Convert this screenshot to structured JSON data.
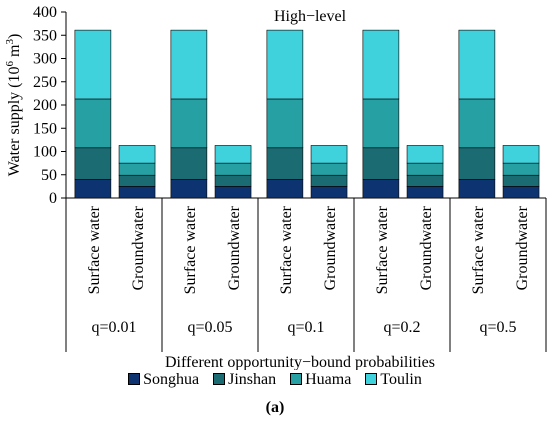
{
  "chart_data": {
    "type": "bar",
    "stacked": true,
    "title": "High−level",
    "ylabel": "Water supply (10",
    "ylabel_sup": "6",
    "ylabel_unit": " m",
    "ylabel_unit_sup": "3",
    "ylabel_close": ")",
    "xlabel": "Different opportunity−bound probabilities",
    "ylim": [
      0,
      400
    ],
    "yticks": [
      "0",
      "50",
      "100",
      "150",
      "200",
      "250",
      "300",
      "350",
      "400"
    ],
    "groups": [
      "q=0.01",
      "q=0.05",
      "q=0.1",
      "q=0.2",
      "q=0.5"
    ],
    "categories": [
      "Surface water",
      "Groundwater"
    ],
    "legend_position": "bottom",
    "series": [
      {
        "name": "Songhua",
        "color": "#0d3470",
        "values": [
          [
            40,
            25
          ],
          [
            40,
            25
          ],
          [
            40,
            25
          ],
          [
            40,
            25
          ],
          [
            40,
            25
          ]
        ]
      },
      {
        "name": "Jinshan",
        "color": "#1a6b72",
        "values": [
          [
            68,
            24
          ],
          [
            68,
            24
          ],
          [
            68,
            24
          ],
          [
            68,
            24
          ],
          [
            68,
            24
          ]
        ]
      },
      {
        "name": "Huama",
        "color": "#26a0a2",
        "values": [
          [
            105,
            26
          ],
          [
            105,
            26
          ],
          [
            105,
            26
          ],
          [
            105,
            26
          ],
          [
            105,
            26
          ]
        ]
      },
      {
        "name": "Toulin",
        "color": "#40d2dc",
        "values": [
          [
            148,
            38
          ],
          [
            148,
            38
          ],
          [
            148,
            38
          ],
          [
            148,
            38
          ],
          [
            148,
            38
          ]
        ]
      }
    ]
  },
  "caption": "(a)"
}
